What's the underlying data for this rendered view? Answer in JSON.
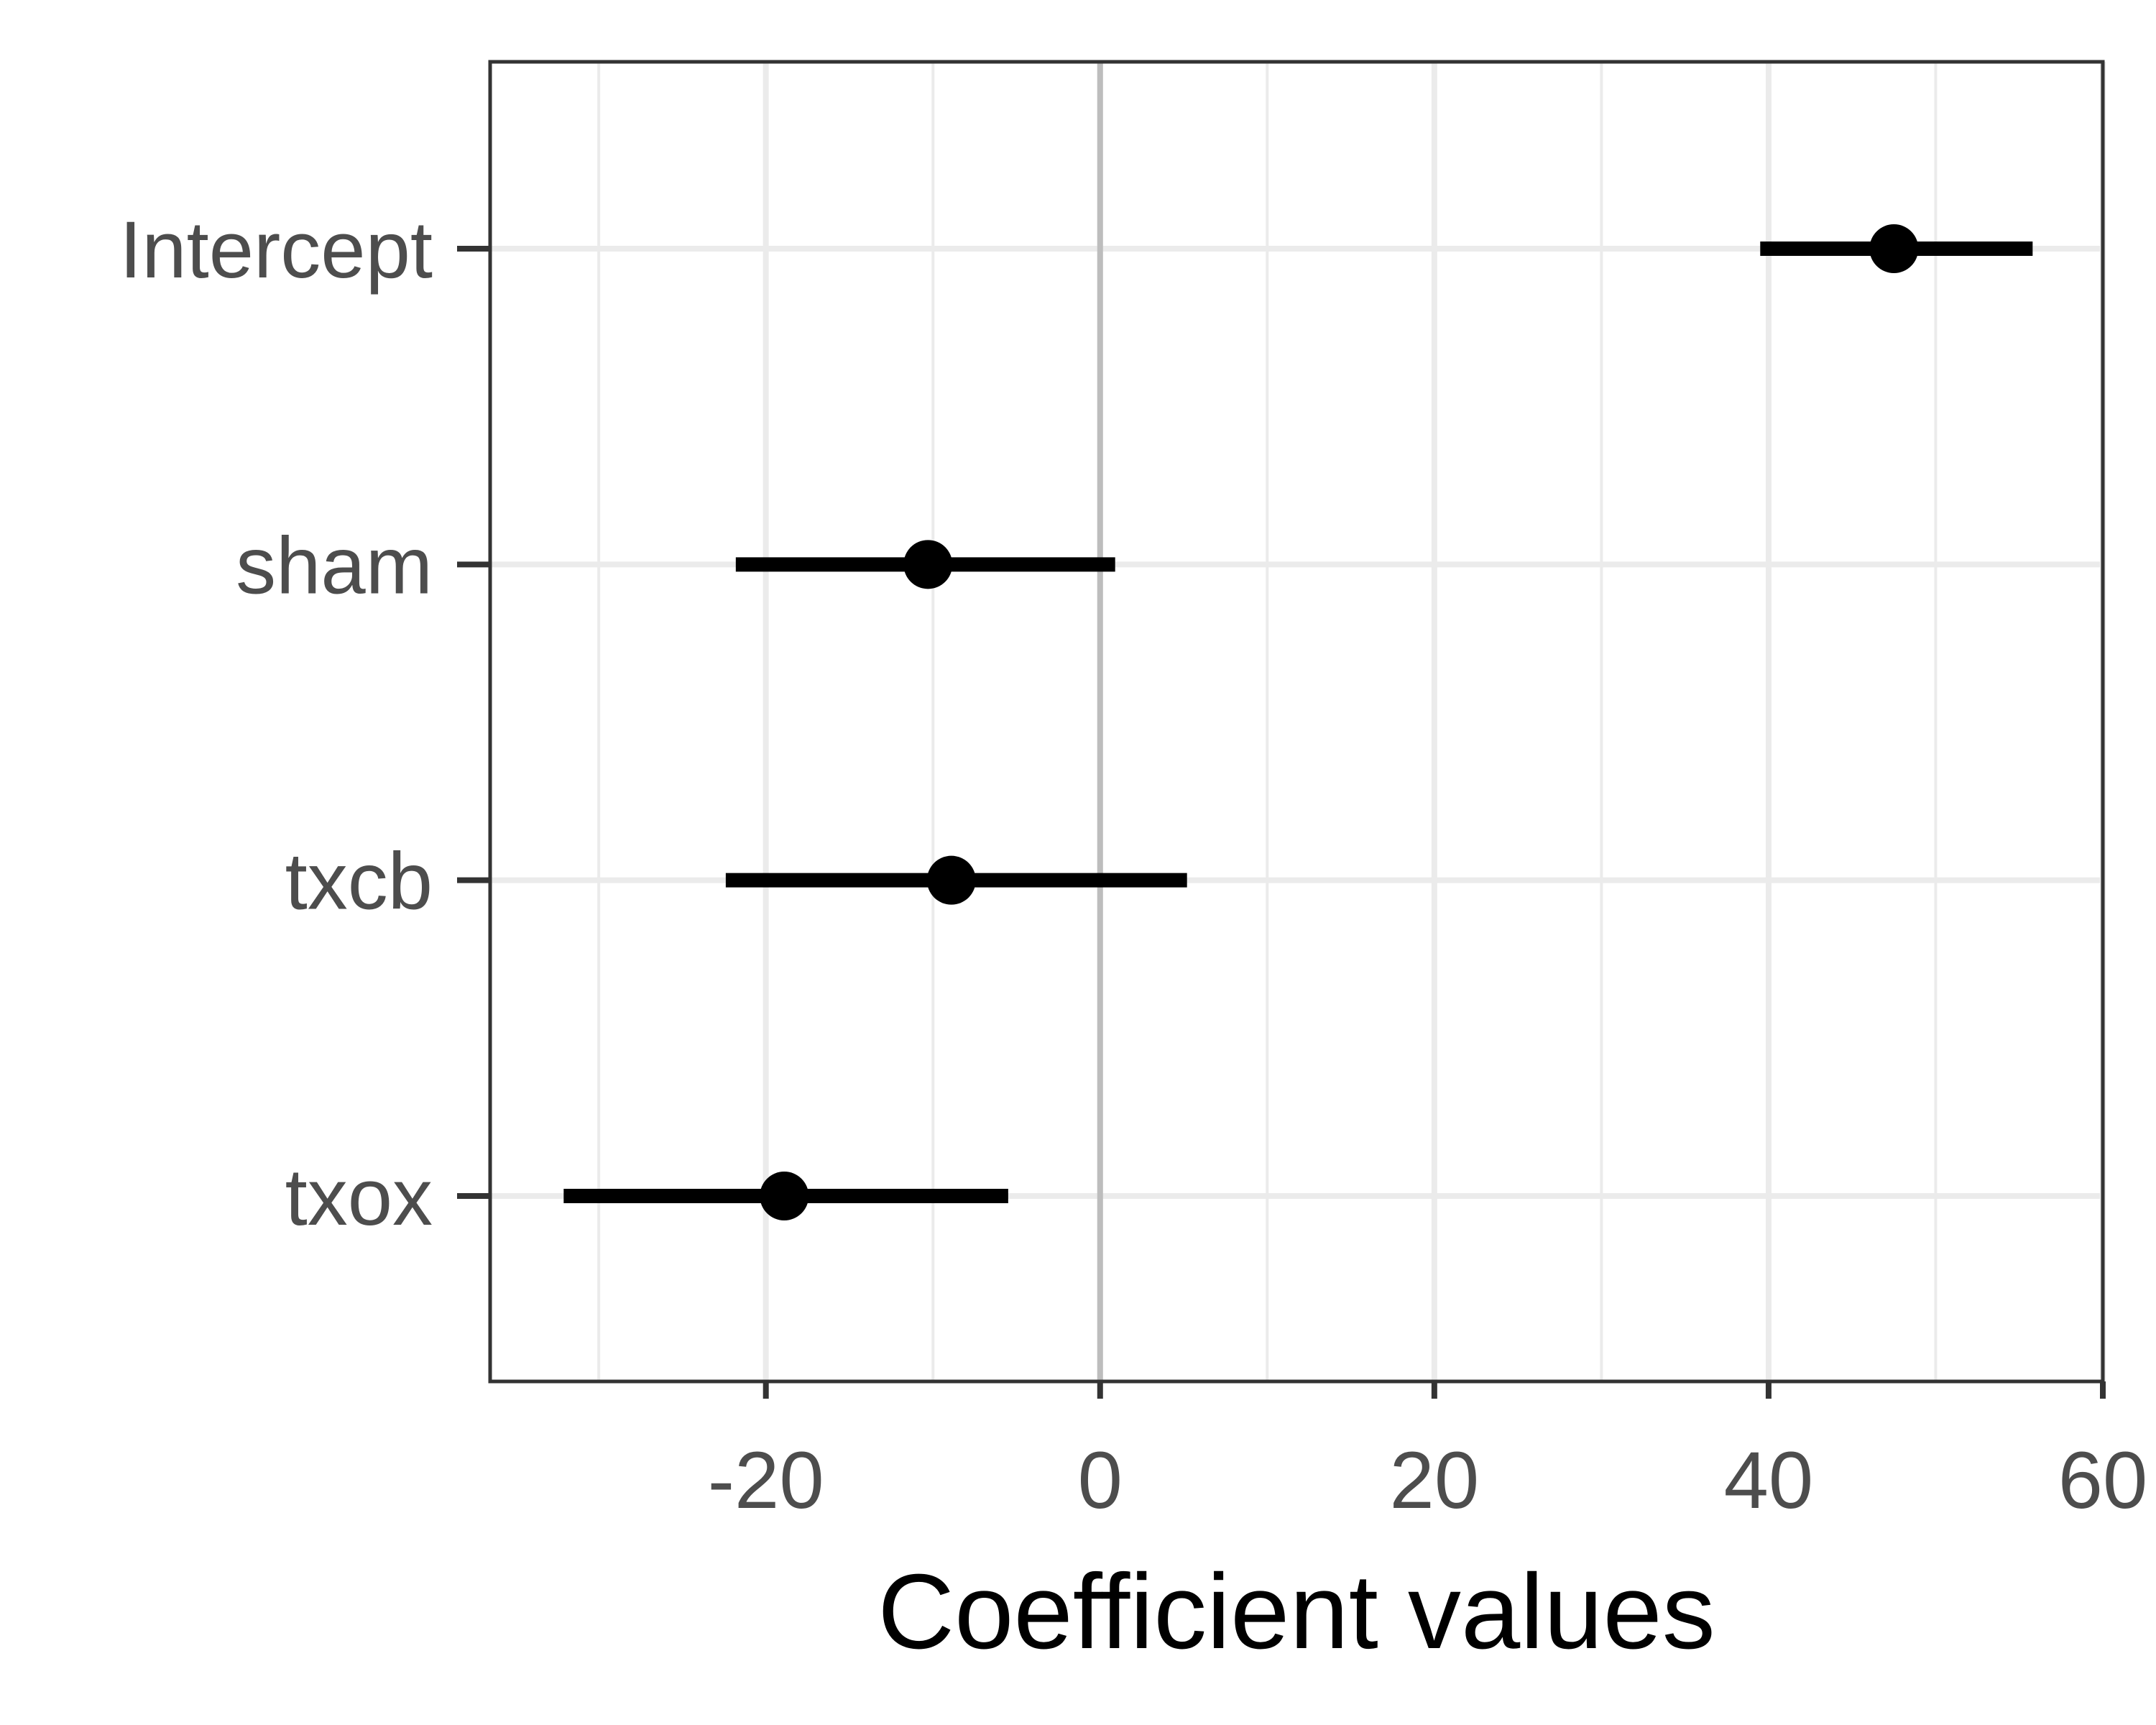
{
  "chart_data": {
    "type": "scatter",
    "title": "",
    "xlabel": "Coefficient values",
    "ylabel": "",
    "xlim": [
      -36.5,
      60
    ],
    "x_ticks": [
      -20,
      0,
      20,
      40,
      60
    ],
    "x_tick_labels": [
      "-20",
      "0",
      "20",
      "40",
      "60"
    ],
    "x_minor_gridlines": [
      -30,
      -10,
      10,
      30,
      50
    ],
    "reference_line_x": 0,
    "grid": true,
    "categories": [
      "Intercept",
      "sham",
      "txcb",
      "txox"
    ],
    "series": [
      {
        "points": [
          {
            "label": "Intercept",
            "estimate": 47.5,
            "low": 39.5,
            "high": 55.8
          },
          {
            "label": "sham",
            "estimate": -10.3,
            "low": -21.8,
            "high": 0.9
          },
          {
            "label": "txcb",
            "estimate": -8.9,
            "low": -22.4,
            "high": 5.2
          },
          {
            "label": "txox",
            "estimate": -18.9,
            "low": -32.1,
            "high": -5.5
          }
        ]
      }
    ],
    "colors": {
      "panel_border": "#333333",
      "grid_major": "#ebebeb",
      "grid_minor": "#ebebeb",
      "reference_line": "#bdbdbd",
      "marks": "#000000",
      "tick_text": "#4d4d4d",
      "axis_title": "#000000"
    }
  }
}
